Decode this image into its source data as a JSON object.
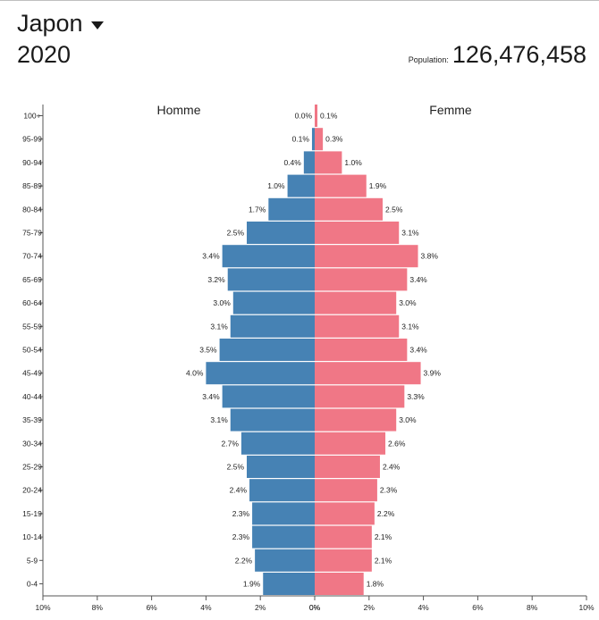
{
  "header": {
    "country": "Japon",
    "year": "2020",
    "population_label": "Population:",
    "population_value": "126,476,458",
    "dropdown_icon": "caret-down-icon"
  },
  "colors": {
    "male": "#4682b4",
    "female": "#f07786",
    "axis": "#555555"
  },
  "chart_data": {
    "type": "bar",
    "orientation": "horizontal-pyramid",
    "categories": [
      "100+",
      "95-99",
      "90-94",
      "85-89",
      "80-84",
      "75-79",
      "70-74",
      "65-69",
      "60-64",
      "55-59",
      "50-54",
      "45-49",
      "40-44",
      "35-39",
      "30-34",
      "25-29",
      "20-24",
      "15-19",
      "10-14",
      "5-9",
      "0-4"
    ],
    "series": [
      {
        "name": "Homme",
        "values": [
          0.0,
          0.1,
          0.4,
          1.0,
          1.7,
          2.5,
          3.4,
          3.2,
          3.0,
          3.1,
          3.5,
          4.0,
          3.4,
          3.1,
          2.7,
          2.5,
          2.4,
          2.3,
          2.3,
          2.2,
          1.9
        ],
        "labels": [
          "0.0%",
          "0.1%",
          "0.4%",
          "1.0%",
          "1.7%",
          "2.5%",
          "3.4%",
          "3.2%",
          "3.0%",
          "3.1%",
          "3.5%",
          "4.0%",
          "3.4%",
          "3.1%",
          "2.7%",
          "2.5%",
          "2.4%",
          "2.3%",
          "2.3%",
          "2.2%",
          "1.9%"
        ]
      },
      {
        "name": "Femme",
        "values": [
          0.1,
          0.3,
          1.0,
          1.9,
          2.5,
          3.1,
          3.8,
          3.4,
          3.0,
          3.1,
          3.4,
          3.9,
          3.3,
          3.0,
          2.6,
          2.4,
          2.3,
          2.2,
          2.1,
          2.1,
          1.8
        ],
        "labels": [
          "0.1%",
          "0.3%",
          "1.0%",
          "1.9%",
          "2.5%",
          "3.1%",
          "3.8%",
          "3.4%",
          "3.0%",
          "3.1%",
          "3.4%",
          "3.9%",
          "3.3%",
          "3.0%",
          "2.6%",
          "2.4%",
          "2.3%",
          "2.2%",
          "2.1%",
          "2.1%",
          "1.8%"
        ]
      }
    ],
    "xlim": [
      0,
      10
    ],
    "x_ticks_left": [
      "10%",
      "8%",
      "6%",
      "4%",
      "2%",
      "0%"
    ],
    "x_ticks_right": [
      "0%",
      "2%",
      "4%",
      "6%",
      "8%",
      "10%"
    ],
    "legend": "top"
  }
}
